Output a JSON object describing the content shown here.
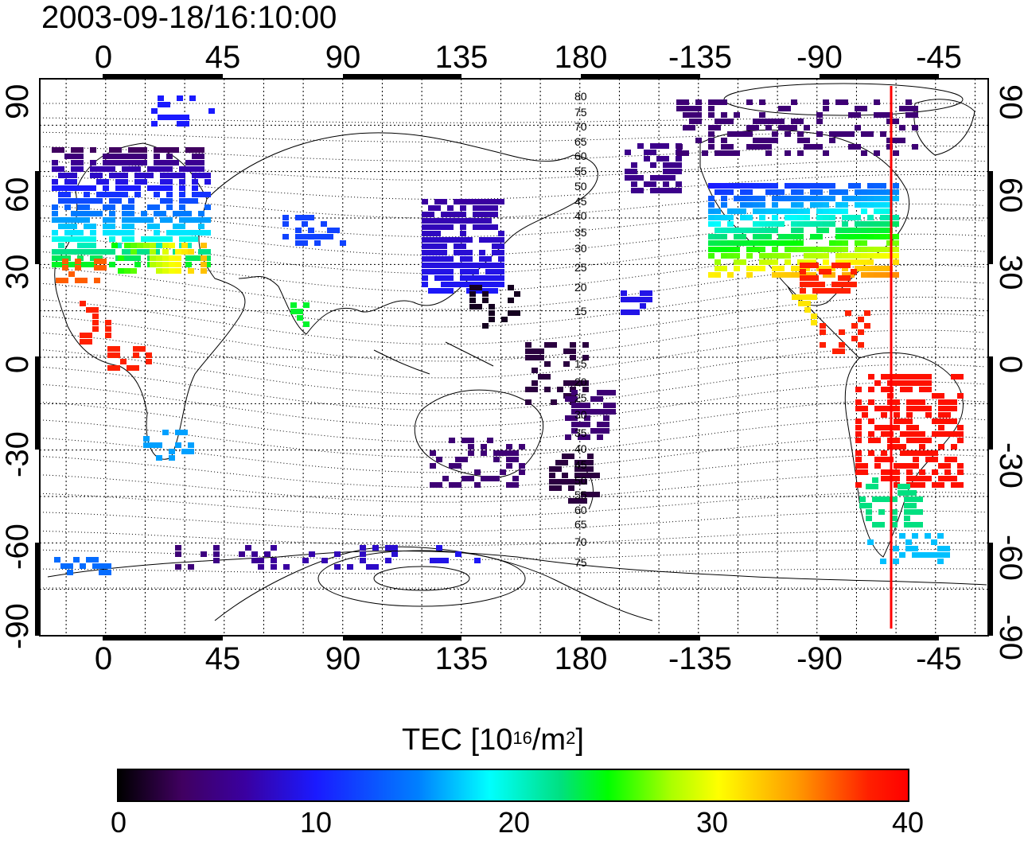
{
  "title": "2003-09-18/16:10:00",
  "top_lon_ticks": [
    "0",
    "45",
    "90",
    "135",
    "180",
    "-135",
    "-90",
    "-45"
  ],
  "bottom_lon_ticks": [
    "0",
    "45",
    "90",
    "135",
    "180",
    "-135",
    "-90",
    "-45"
  ],
  "left_lat_ticks": [
    "90",
    "60",
    "30",
    "0",
    "-30",
    "-60",
    "-90"
  ],
  "right_lat_ticks": [
    "90",
    "60",
    "30",
    "0",
    "-30",
    "-60",
    "-90"
  ],
  "contour_labels": [
    "80",
    "75",
    "70",
    "65",
    "60",
    "55",
    "50",
    "45",
    "40",
    "35",
    "30",
    "25",
    "20",
    "15",
    "15",
    "20",
    "25",
    "30",
    "35",
    "40",
    "45",
    "50",
    "55",
    "60",
    "65",
    "70",
    "75"
  ],
  "colorbar": {
    "title_main": "TEC  [10",
    "title_exp": "16",
    "title_mid": "/m",
    "title_exp2": "2",
    "title_end": "]",
    "ticks": [
      "0",
      "10",
      "20",
      "30",
      "40"
    ],
    "range": [
      0,
      40
    ]
  },
  "terminator_color": "#ff0000",
  "chart_data": {
    "type": "heatmap",
    "title": "2003-09-18/16:10:00",
    "x_range_deg_lon": [
      -25,
      335
    ],
    "y_range_deg_lat": [
      -90,
      90
    ],
    "colorbar_label": "TEC [10^16/m^2]",
    "color_range": [
      0,
      40
    ]
  }
}
